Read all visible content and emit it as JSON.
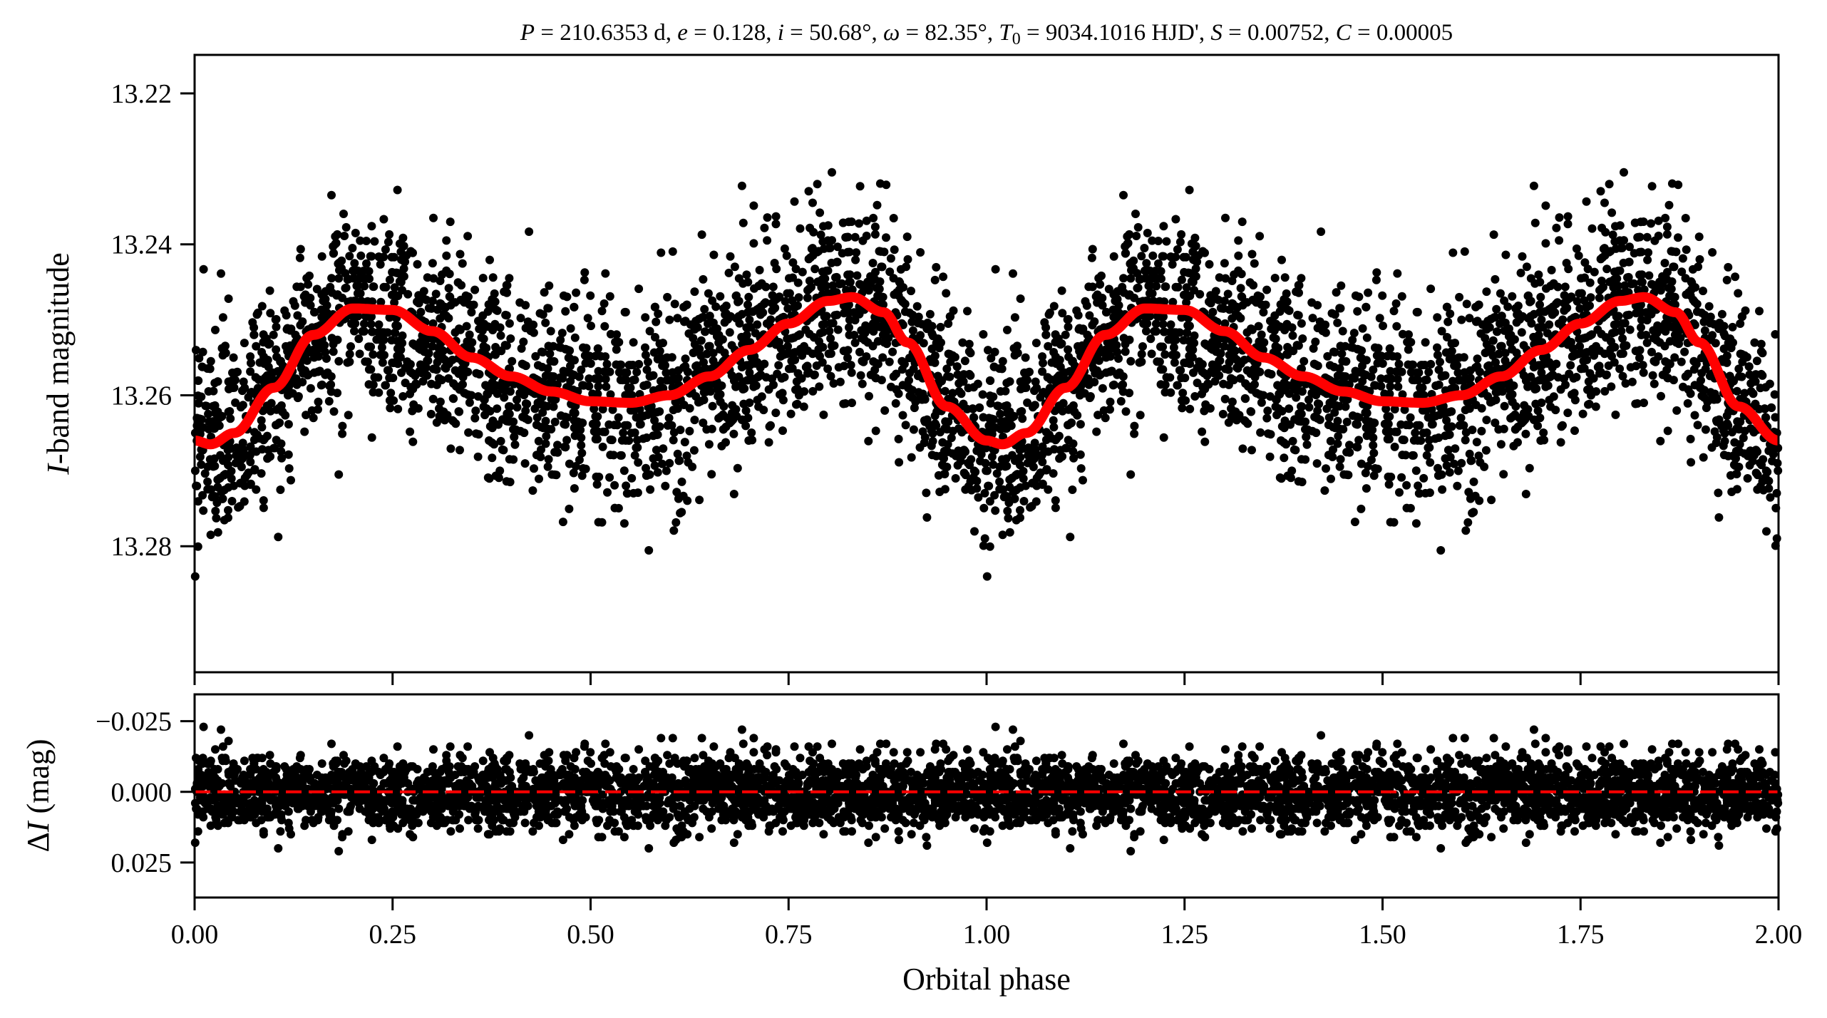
{
  "chart_data": [
    {
      "type": "scatter",
      "panel": "light-curve",
      "title": "P = 210.6353 d, e = 0.128, i = 50.68°, ω = 82.35°, T0 = 9034.1016 HJD', S = 0.00752, C = 0.00005",
      "title_parts": {
        "P": "210.6353 d",
        "e": "0.128",
        "i": "50.68°",
        "omega": "82.35°",
        "T0": "9034.1016 HJD'",
        "S": "0.00752",
        "C": "0.00005"
      },
      "xlabel": "Orbital phase",
      "ylabel_italic": "I",
      "ylabel_rest": "-band magnitude",
      "xlim": [
        0,
        2
      ],
      "ylim": [
        13.2967,
        13.2149
      ],
      "y_inverted": true,
      "yticks": [
        13.22,
        13.24,
        13.26,
        13.28
      ],
      "ytick_labels": [
        "13.22",
        "13.24",
        "13.26",
        "13.28"
      ],
      "model_color": "#ff0000",
      "point_color": "#000000",
      "model_curve_one_period": {
        "phase": [
          0.0,
          0.02,
          0.05,
          0.1,
          0.15,
          0.2,
          0.25,
          0.3,
          0.35,
          0.4,
          0.45,
          0.5,
          0.55,
          0.6,
          0.65,
          0.7,
          0.75,
          0.8,
          0.83,
          0.87,
          0.9,
          0.95,
          1.0
        ],
        "mag": [
          13.266,
          13.2665,
          13.265,
          13.259,
          13.252,
          13.2485,
          13.2487,
          13.2515,
          13.255,
          13.2575,
          13.2595,
          13.2608,
          13.261,
          13.26,
          13.2575,
          13.254,
          13.2505,
          13.2475,
          13.247,
          13.249,
          13.253,
          13.2615,
          13.266
        ]
      },
      "scatter_noise_sigma_mag": 0.0065,
      "points_per_period": 2400
    },
    {
      "type": "scatter",
      "panel": "residuals",
      "ylabel_italic": "I",
      "ylabel_prefix": "Δ",
      "ylabel_rest": " (mag)",
      "xlim": [
        0,
        2
      ],
      "ylim": [
        0.0374,
        -0.0345
      ],
      "y_inverted": true,
      "yticks": [
        -0.025,
        0.0,
        0.025
      ],
      "ytick_labels": [
        "−0.025",
        "0.000",
        "0.025"
      ],
      "xticks": [
        0,
        0.25,
        0.5,
        0.75,
        1.0,
        1.25,
        1.5,
        1.75,
        2.0
      ],
      "xtick_labels": [
        "0.00",
        "0.25",
        "0.50",
        "0.75",
        "1.00",
        "1.25",
        "1.50",
        "1.75",
        "2.00"
      ],
      "zero_line_color": "#ff0000"
    }
  ]
}
